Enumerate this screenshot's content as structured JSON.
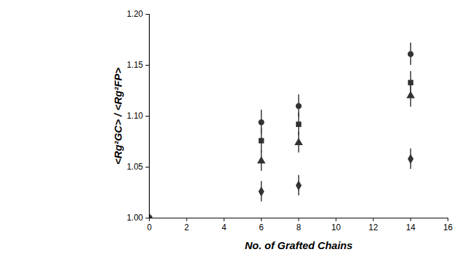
{
  "chart_data": {
    "type": "scatter",
    "x_label": "No. of Grafted Chains",
    "y_label": "<Rg²GC> / <Rg²FP>",
    "x": [
      0,
      6,
      8,
      14
    ],
    "series": [
      {
        "color": "#333333",
        "marker": "circle",
        "values": [
          1.0,
          1.094,
          1.11,
          1.161
        ],
        "errors": [
          0,
          0.012,
          0.011,
          0.011
        ]
      },
      {
        "color": "#333333",
        "marker": "square",
        "values": [
          1.0,
          1.076,
          1.092,
          1.133
        ],
        "errors": [
          0,
          0.012,
          0.011,
          0.011
        ]
      },
      {
        "color": "#333333",
        "marker": "triangle",
        "values": [
          1.0,
          1.056,
          1.074,
          1.12
        ],
        "errors": [
          0,
          0.01,
          0.01,
          0.011
        ]
      },
      {
        "color": "#333333",
        "marker": "diamond",
        "values": [
          1.0,
          1.026,
          1.032,
          1.058
        ],
        "errors": [
          0,
          0.01,
          0.01,
          0.01
        ]
      }
    ],
    "xlim": [
      0,
      16
    ],
    "xticks": [
      0,
      2,
      4,
      6,
      8,
      10,
      12,
      14,
      16
    ],
    "ylim": [
      1.0,
      1.2
    ],
    "yticks": [
      {
        "value": 1.0,
        "label": "1.00"
      },
      {
        "value": 1.05,
        "label": "1.05"
      },
      {
        "value": 1.1,
        "label": "1.10"
      },
      {
        "value": 1.15,
        "label": "1.15"
      },
      {
        "value": 1.2,
        "label": "1.20"
      }
    ],
    "grid": false
  }
}
